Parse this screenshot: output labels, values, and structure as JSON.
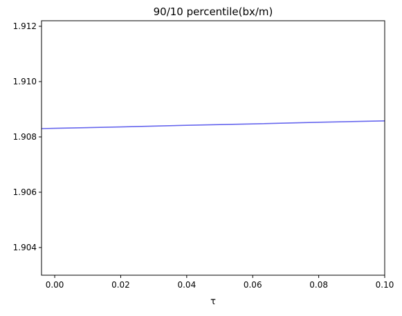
{
  "chart_data": {
    "type": "line",
    "title": "90/10 percentile(bx/m)",
    "xlabel": "τ",
    "ylabel": "",
    "xlim": [
      -0.004,
      0.1
    ],
    "ylim": [
      1.903,
      1.9122
    ],
    "x_ticks": [
      0.0,
      0.02,
      0.04,
      0.06,
      0.08,
      0.1
    ],
    "x_tick_labels": [
      "0.00",
      "0.02",
      "0.04",
      "0.06",
      "0.08",
      "0.10"
    ],
    "y_ticks": [
      1.904,
      1.906,
      1.908,
      1.91,
      1.912
    ],
    "y_tick_labels": [
      "1.904",
      "1.906",
      "1.908",
      "1.910",
      "1.912"
    ],
    "grid": false,
    "legend": "none",
    "series": [
      {
        "color": "#6666ee",
        "x": [
          -0.004,
          0.0,
          0.02,
          0.04,
          0.06,
          0.08,
          0.1
        ],
        "y": [
          1.9083,
          1.90831,
          1.90836,
          1.90842,
          1.90847,
          1.90853,
          1.90858
        ]
      }
    ]
  }
}
